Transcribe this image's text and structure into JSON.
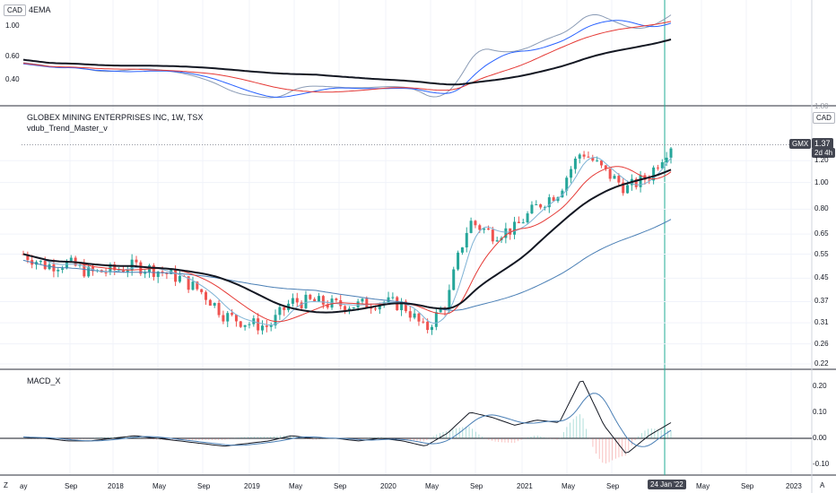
{
  "panes": {
    "ema": {
      "label": "4EMA",
      "currency": "CAD",
      "axis_labels": [
        "1.00",
        "0.60",
        "0.40"
      ]
    },
    "price": {
      "title": "GLOBEX MINING ENTERPRISES INC, 1W, TSX",
      "indicator": "vdub_Trend_Master_v",
      "currency": "CAD",
      "axis_labels": [
        "1.20",
        "1.00",
        "0.80",
        "0.65",
        "0.55",
        "0.45",
        "0.37",
        "0.31",
        "0.26",
        "0.22"
      ],
      "top_axis_partial": "1.80",
      "symbol_badge": "GMX",
      "price_badge": "1.37",
      "time_badge": "2d 4h"
    },
    "macd": {
      "label": "MACD_X",
      "axis_labels": [
        "0.20",
        "0.10",
        "0.00",
        "-0.10"
      ]
    }
  },
  "time_axis": {
    "labels": [
      "ay",
      "Sep",
      "2018",
      "May",
      "Sep",
      "2019",
      "May",
      "Sep",
      "2020",
      "May",
      "Sep",
      "2021",
      "May",
      "Sep",
      "May",
      "Sep",
      "2023"
    ],
    "crosshair_label": "24 Jan '22",
    "corner_left": "Z",
    "corner_right": "A"
  },
  "colors": {
    "up": "#26a69a",
    "down": "#ef5350",
    "grid": "#f0f3fa",
    "ema_fast": "#2962ff",
    "ema_mid": "#e53935",
    "ema_slow": "#131722",
    "ema_long": "#4a7fb5",
    "crosshair": "#22ab94",
    "badge_dark": "#434651"
  },
  "chart_data": {
    "type": "candlestick",
    "x": [
      "2017-04",
      "2017-06",
      "2017-08",
      "2017-10",
      "2017-12",
      "2018-02",
      "2018-04",
      "2018-06",
      "2018-08",
      "2018-10",
      "2018-12",
      "2019-02",
      "2019-04",
      "2019-06",
      "2019-08",
      "2019-10",
      "2019-12",
      "2020-02",
      "2020-04",
      "2020-06",
      "2020-08",
      "2020-10",
      "2020-12",
      "2021-02",
      "2021-04",
      "2021-06",
      "2021-08",
      "2021-10",
      "2021-12",
      "2022-01"
    ],
    "close": [
      0.55,
      0.5,
      0.51,
      0.47,
      0.48,
      0.5,
      0.48,
      0.45,
      0.4,
      0.33,
      0.31,
      0.3,
      0.37,
      0.37,
      0.36,
      0.36,
      0.37,
      0.36,
      0.29,
      0.37,
      0.72,
      0.65,
      0.68,
      0.82,
      0.93,
      1.3,
      1.1,
      0.95,
      1.05,
      1.37
    ],
    "ylim": [
      0.22,
      1.8
    ],
    "yscale": "log",
    "macd": [
      0.005,
      0.0,
      -0.01,
      -0.01,
      0.0,
      0.01,
      0.0,
      -0.01,
      -0.02,
      -0.03,
      -0.02,
      -0.01,
      0.01,
      0.0,
      0.0,
      -0.01,
      0.0,
      -0.01,
      -0.03,
      0.02,
      0.1,
      0.08,
      0.05,
      0.07,
      0.06,
      0.23,
      0.05,
      -0.06,
      0.01,
      0.06
    ],
    "macd_ylim": [
      -0.12,
      0.24
    ],
    "ema_pane_ylim": [
      0.3,
      1.4
    ]
  }
}
